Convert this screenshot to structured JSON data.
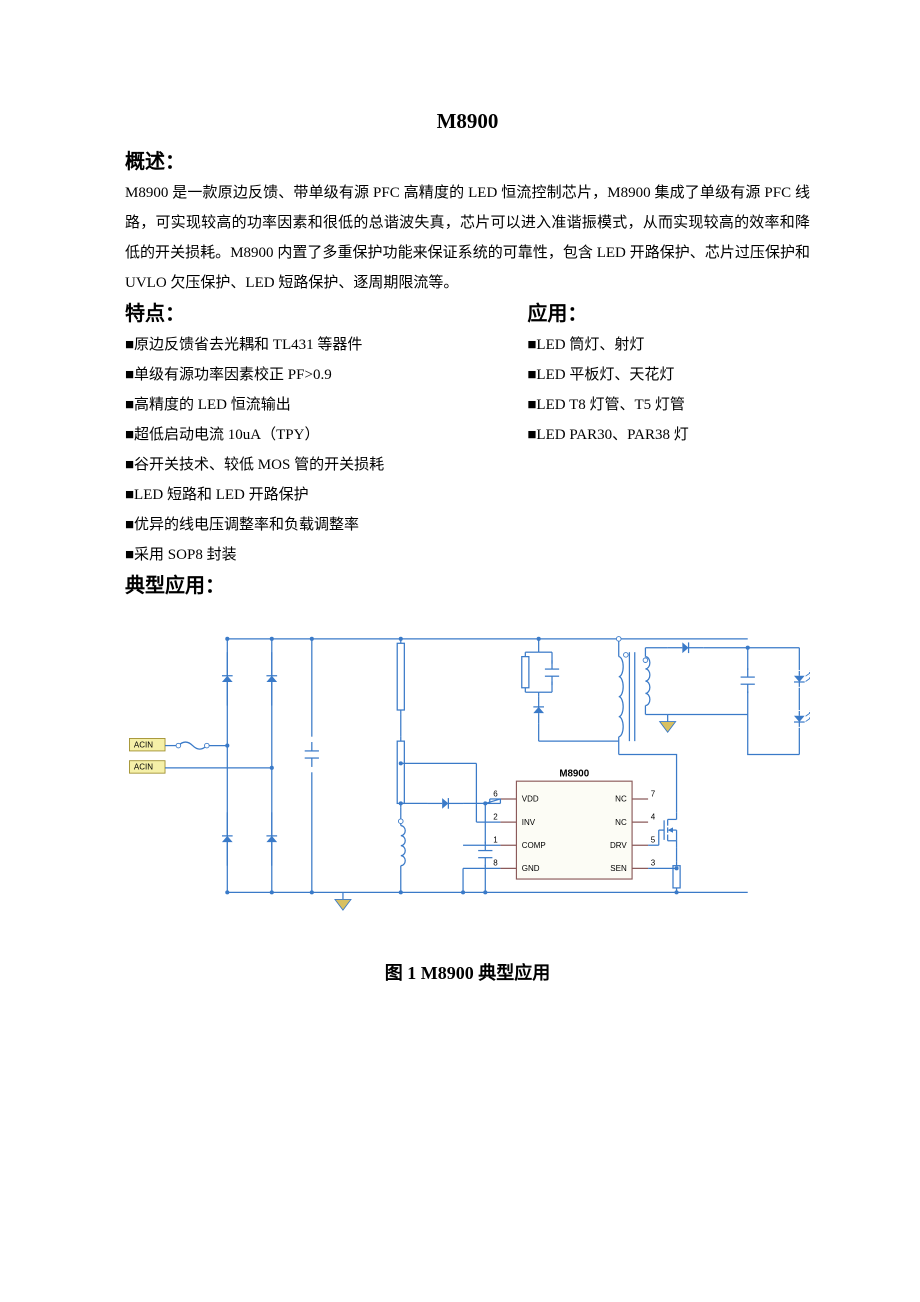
{
  "title": "M8900",
  "sections": {
    "overview_heading": "概述：",
    "overview_body": "M8900 是一款原边反馈、带单级有源 PFC 高精度的 LED 恒流控制芯片，M8900 集成了单级有源 PFC 线路，可实现较高的功率因素和很低的总谐波失真，芯片可以进入准谐振模式，从而实现较高的效率和降低的开关损耗。M8900 内置了多重保护功能来保证系统的可靠性，包含 LED 开路保护、芯片过压保护和 UVLO 欠压保护、LED 短路保护、逐周期限流等。",
    "features_heading": "特点：",
    "applications_heading": "应用：",
    "typical_heading": "典型应用：",
    "caption": "图 1 M8900 典型应用"
  },
  "features": [
    "■原边反馈省去光耦和 TL431 等器件",
    "■单级有源功率因素校正 PF>0.9",
    "■高精度的 LED 恒流输出",
    "■超低启动电流 10uA（TPY）",
    "■谷开关技术、较低 MOS 管的开关损耗",
    "■LED 短路和 LED 开路保护",
    "■优异的线电压调整率和负载调整率",
    "■采用 SOP8 封装"
  ],
  "applications": [
    "■LED 筒灯、射灯",
    "■LED 平板灯、天花灯",
    "■LED T8 灯管、T5 灯管",
    "■LED PAR30、PAR38 灯"
  ],
  "schematic": {
    "chip_label": "M8900",
    "acin_label": "ACIN",
    "pins_left": [
      {
        "num": "6",
        "name": "VDD"
      },
      {
        "num": "2",
        "name": "INV"
      },
      {
        "num": "1",
        "name": "COMP"
      },
      {
        "num": "8",
        "name": "GND"
      }
    ],
    "pins_right": [
      {
        "num": "7",
        "name": "NC"
      },
      {
        "num": "4",
        "name": "NC"
      },
      {
        "num": "5",
        "name": "DRV"
      },
      {
        "num": "3",
        "name": "SEN"
      }
    ],
    "colors": {
      "wire": "#3a7ac8",
      "chip_border": "#8b5a5a",
      "chip_fill": "#fcfcf5",
      "text": "#000000",
      "acin_fill": "#f5f0a8",
      "acin_border": "#a09030",
      "ground_fill": "#d8c060"
    },
    "stroke_width": 1.4,
    "font_size_pin": 9,
    "font_size_chip": 11,
    "font_size_acin": 9
  }
}
